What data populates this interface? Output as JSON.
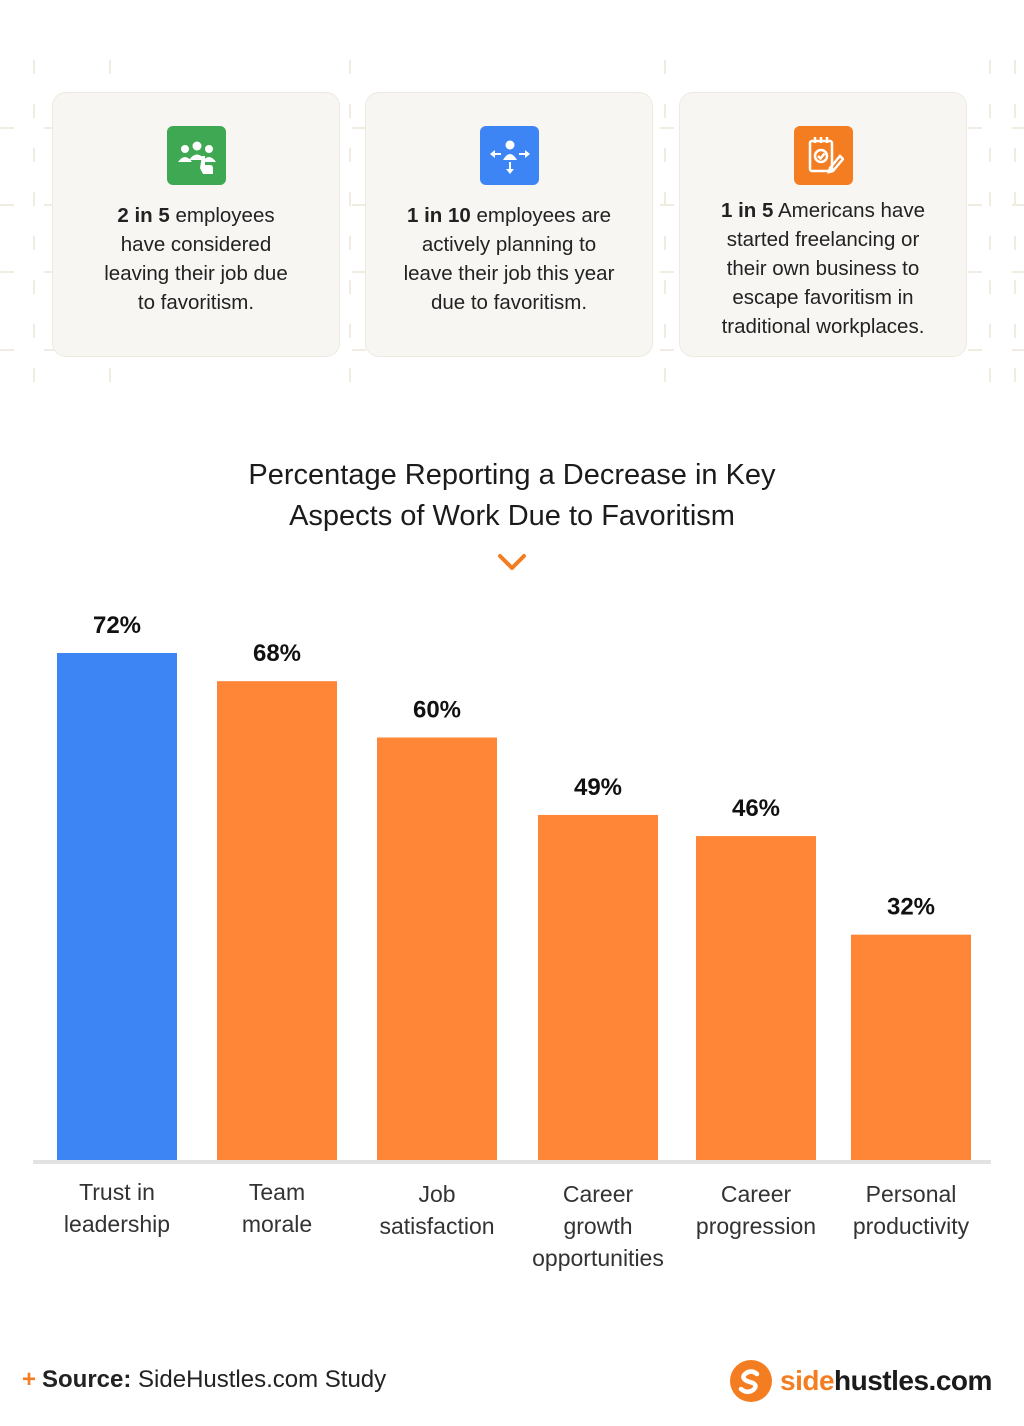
{
  "stats": [
    {
      "icon": "team-pointing-icon",
      "color": "#3ea852",
      "bold": "2 in 5",
      "rest": " employees have considered leaving their job due to favoritism.",
      "lines": [
        [
          "2 in 5",
          " employees"
        ],
        [
          "",
          "have considered"
        ],
        [
          "",
          "leaving their job due"
        ],
        [
          "",
          "to favoritism."
        ]
      ]
    },
    {
      "icon": "person-arrows-icon",
      "color": "#3d84f5",
      "bold": "1 in 10",
      "rest": " employees are actively planning to leave their job this year due to favoritism.",
      "lines": [
        [
          "1 in 10",
          " employees are"
        ],
        [
          "",
          "actively planning to"
        ],
        [
          "",
          "leave their job this year"
        ],
        [
          "",
          "due to favoritism."
        ]
      ]
    },
    {
      "icon": "checklist-pencil-icon",
      "color": "#f47d22",
      "bold": "1 in 5",
      "rest": " Americans have started freelancing or their own business to escape favoritism in traditional workplaces.",
      "lines": [
        [
          "1 in 5",
          " Americans have"
        ],
        [
          "",
          "started freelancing or"
        ],
        [
          "",
          "their own business to"
        ],
        [
          "",
          "escape favoritism in"
        ],
        [
          "",
          "traditional workplaces."
        ]
      ]
    }
  ],
  "title_lines": [
    "Percentage Reporting a Decrease in Key",
    "Aspects of Work Due to Favoritism"
  ],
  "chart_data": {
    "type": "bar",
    "title": "Percentage Reporting a Decrease in Key Aspects of Work Due to Favoritism",
    "categories": [
      "Trust in leadership",
      "Team morale",
      "Job satisfaction",
      "Career growth opportunities",
      "Career progression",
      "Personal productivity"
    ],
    "category_lines": [
      [
        "Trust in",
        "leadership"
      ],
      [
        "Team",
        "morale"
      ],
      [
        "Job",
        "satisfaction"
      ],
      [
        "Career",
        "growth",
        "opportunities"
      ],
      [
        "Career",
        "progression"
      ],
      [
        "Personal",
        "productivity"
      ]
    ],
    "values": [
      72,
      68,
      60,
      49,
      46,
      32
    ],
    "value_labels": [
      "72%",
      "68%",
      "60%",
      "49%",
      "46%",
      "32%"
    ],
    "unit": "%",
    "bar_colors": [
      "#3d84f5",
      "#fe8636",
      "#fe8636",
      "#fe8636",
      "#fe8636",
      "#fe8636"
    ],
    "ylim": [
      0,
      72
    ],
    "grid": false,
    "legend": "none"
  },
  "source": {
    "plus": "+",
    "label": "Source:",
    "text": " SideHustles.com Study"
  },
  "logo": {
    "part1": "side",
    "part2": "hustles.com"
  },
  "colors": {
    "accent": "#f47d22",
    "blue": "#3d84f5",
    "green": "#3ea852",
    "baseline": "#e2e2e2"
  }
}
